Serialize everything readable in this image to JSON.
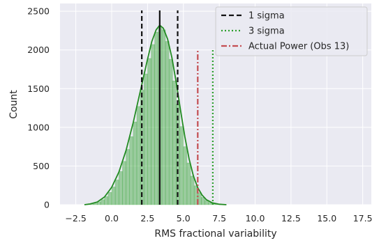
{
  "chart_data": {
    "type": "histogram",
    "title": "",
    "xlabel": "RMS fractional variability",
    "ylabel": "Count",
    "xlim": [
      -3.6,
      18.1
    ],
    "ylim": [
      0,
      2600
    ],
    "grid": true,
    "legend_position": "top-right",
    "xticks": [
      -2.5,
      0.0,
      2.5,
      5.0,
      7.5,
      10.0,
      12.5,
      15.0,
      17.5
    ],
    "xtick_labels": [
      "−2.5",
      "0.0",
      "2.5",
      "5.0",
      "7.5",
      "10.0",
      "12.5",
      "15.0",
      "17.5"
    ],
    "yticks": [
      0,
      500,
      1000,
      1500,
      2000,
      2500
    ],
    "ytick_labels": [
      "0",
      "500",
      "1000",
      "1500",
      "2000",
      "2500"
    ],
    "bin_width": 0.25,
    "histogram": {
      "color": "#2ca02c",
      "bins": [
        [
          -1.75,
          -1.5,
          5
        ],
        [
          -1.5,
          -1.25,
          10
        ],
        [
          -1.25,
          -1.0,
          20
        ],
        [
          -1.0,
          -0.75,
          38
        ],
        [
          -0.75,
          -0.5,
          65
        ],
        [
          -0.5,
          -0.25,
          105
        ],
        [
          -0.25,
          0.0,
          160
        ],
        [
          0.0,
          0.25,
          230
        ],
        [
          0.25,
          0.5,
          320
        ],
        [
          0.5,
          0.75,
          430
        ],
        [
          0.75,
          1.0,
          560
        ],
        [
          1.0,
          1.25,
          715
        ],
        [
          1.25,
          1.5,
          880
        ],
        [
          1.5,
          1.75,
          1070
        ],
        [
          1.75,
          2.0,
          1270
        ],
        [
          2.0,
          2.25,
          1480
        ],
        [
          2.25,
          2.5,
          1690
        ],
        [
          2.5,
          2.75,
          1890
        ],
        [
          2.75,
          3.0,
          2070
        ],
        [
          3.0,
          3.25,
          2230
        ],
        [
          3.25,
          3.5,
          2300
        ],
        [
          3.5,
          3.75,
          2260
        ],
        [
          3.75,
          4.0,
          2110
        ],
        [
          4.0,
          4.25,
          1880
        ],
        [
          4.25,
          4.5,
          1600
        ],
        [
          4.5,
          4.75,
          1300
        ],
        [
          4.75,
          5.0,
          1010
        ],
        [
          5.0,
          5.25,
          750
        ],
        [
          5.25,
          5.5,
          540
        ],
        [
          5.5,
          5.75,
          370
        ],
        [
          5.75,
          6.0,
          245
        ],
        [
          6.0,
          6.25,
          155
        ],
        [
          6.25,
          6.5,
          95
        ],
        [
          6.5,
          6.75,
          55
        ],
        [
          6.75,
          7.0,
          30
        ],
        [
          7.0,
          7.25,
          15
        ],
        [
          7.25,
          7.5,
          8
        ],
        [
          7.5,
          7.75,
          3
        ]
      ]
    },
    "kde": {
      "color": "#228b22",
      "points": [
        [
          -1.9,
          0
        ],
        [
          -1.5,
          10
        ],
        [
          -1.0,
          35
        ],
        [
          -0.5,
          100
        ],
        [
          0.0,
          225
        ],
        [
          0.5,
          420
        ],
        [
          1.0,
          700
        ],
        [
          1.5,
          1060
        ],
        [
          2.0,
          1470
        ],
        [
          2.5,
          1880
        ],
        [
          2.8,
          2110
        ],
        [
          3.1,
          2260
        ],
        [
          3.35,
          2320
        ],
        [
          3.6,
          2280
        ],
        [
          3.9,
          2140
        ],
        [
          4.2,
          1900
        ],
        [
          4.5,
          1580
        ],
        [
          4.8,
          1220
        ],
        [
          5.1,
          880
        ],
        [
          5.4,
          590
        ],
        [
          5.7,
          370
        ],
        [
          6.0,
          220
        ],
        [
          6.3,
          125
        ],
        [
          6.6,
          65
        ],
        [
          7.0,
          25
        ],
        [
          7.5,
          6
        ],
        [
          8.0,
          0
        ]
      ]
    },
    "vlines": [
      {
        "name": "mean",
        "x": 3.35,
        "ymax": 2510,
        "color": "#111111",
        "style": "solid",
        "legend": false
      },
      {
        "name": "1 sigma",
        "x": 2.1,
        "ymax": 2510,
        "color": "#111111",
        "style": "dashed",
        "legend": true
      },
      {
        "name": "1 sigma",
        "x": 4.6,
        "ymax": 2510,
        "color": "#111111",
        "style": "dashed",
        "legend": false
      },
      {
        "name": "3 sigma",
        "x": 7.05,
        "ymax": 2010,
        "color": "#2ca02c",
        "style": "dotted",
        "legend": true
      },
      {
        "name": "Actual Power (Obs 13)",
        "x": 6.0,
        "ymax": 2010,
        "color": "#c44e52",
        "style": "dashdot",
        "legend": true
      }
    ],
    "legend": [
      "1 sigma",
      "3 sigma",
      "Actual Power (Obs 13)"
    ]
  }
}
